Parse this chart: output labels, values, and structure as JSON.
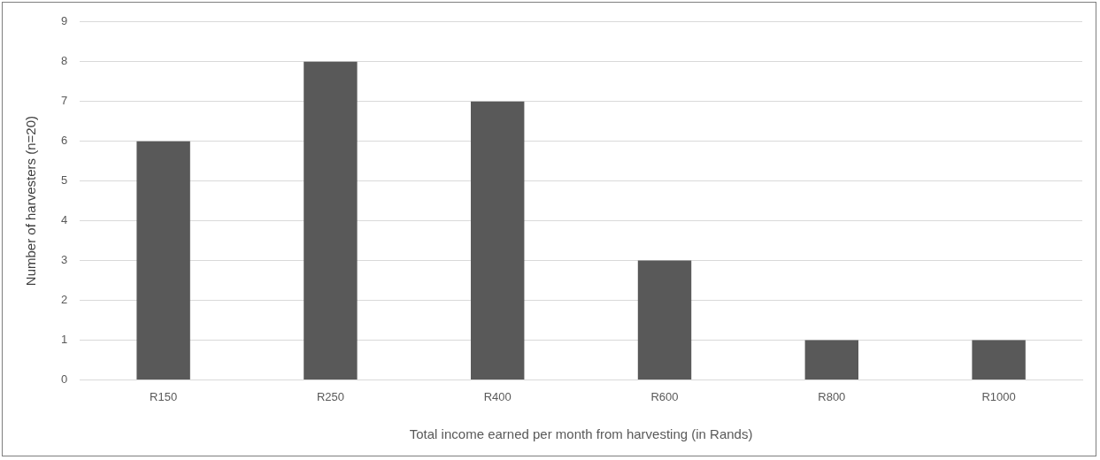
{
  "chart_data": {
    "type": "bar",
    "xlabel": "Total income earned per month from harvesting (in Rands)",
    "ylabel": "Number of harvesters (n=20)",
    "categories": [
      "R150",
      "R250",
      "R400",
      "R600",
      "R800",
      "R1000"
    ],
    "values": [
      6,
      8,
      7,
      3,
      1,
      1
    ],
    "color": "#595959",
    "ylim": [
      0,
      9
    ],
    "yticks": [
      0,
      1,
      2,
      3,
      4,
      5,
      6,
      7,
      8,
      9
    ],
    "grid": "y"
  }
}
